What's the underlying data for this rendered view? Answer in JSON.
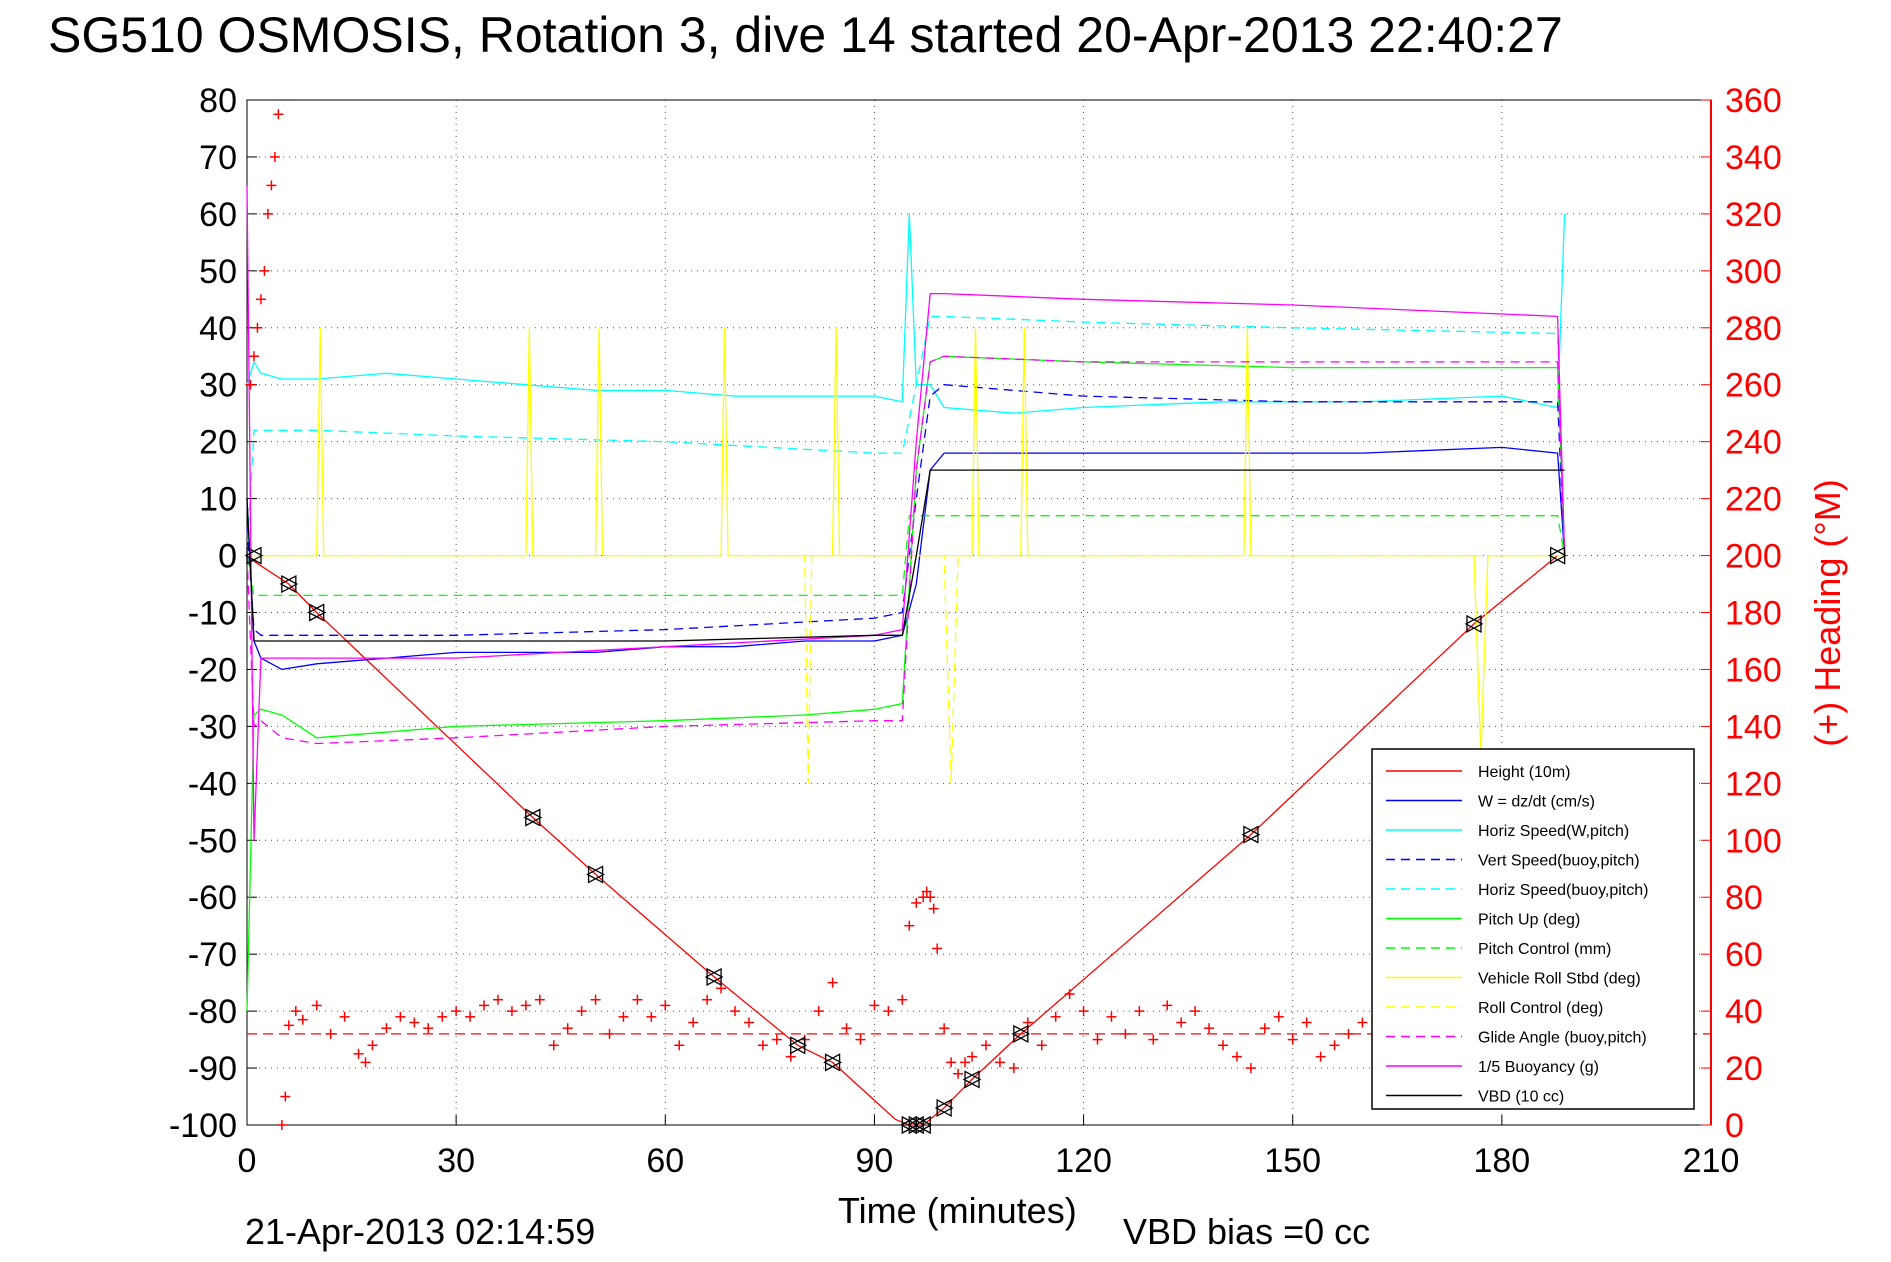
{
  "title": "SG510 OSMOSIS, Rotation 3, dive 14 started 20-Apr-2013 22:40:27",
  "footer": {
    "end_time": "21-Apr-2013 02:14:59",
    "vbd_bias": "VBD bias =0 cc"
  },
  "chart_data": {
    "type": "line",
    "xlabel": "Time (minutes)",
    "ylabel": "",
    "y2label": "(+) Heading (°M)",
    "xlim": [
      0,
      210
    ],
    "ylim": [
      -100,
      80
    ],
    "y2lim": [
      0,
      360
    ],
    "x_ticks": [
      0,
      30,
      60,
      90,
      120,
      150,
      180,
      210
    ],
    "y_ticks": [
      80,
      70,
      60,
      50,
      40,
      30,
      20,
      10,
      0,
      -10,
      -20,
      -30,
      -40,
      -50,
      -60,
      -70,
      -80,
      -90,
      -100
    ],
    "y2_ticks": [
      360,
      340,
      320,
      300,
      280,
      260,
      240,
      220,
      200,
      180,
      160,
      140,
      120,
      100,
      80,
      60,
      40,
      20,
      0
    ],
    "grid": true,
    "legend_position": "bottom-right",
    "series": [
      {
        "name": "Height (10m)",
        "color": "#ff0000",
        "style": "solid",
        "x": [
          0,
          1,
          6,
          10,
          41,
          50,
          67,
          79,
          84,
          93,
          95,
          97,
          100,
          104,
          111,
          144,
          176,
          188
        ],
        "y": [
          0,
          -1,
          -5,
          -10,
          -46,
          -56,
          -74,
          -86,
          -89,
          -99,
          -100,
          -100,
          -97,
          -92,
          -84,
          -49,
          -12,
          0
        ]
      },
      {
        "name": "W = dz/dt (cm/s)",
        "color": "#0000ff",
        "style": "solid",
        "x": [
          0,
          1,
          2,
          5,
          10,
          20,
          30,
          40,
          50,
          60,
          70,
          80,
          90,
          94,
          96,
          98,
          100,
          110,
          120,
          140,
          160,
          180,
          188,
          189
        ],
        "y": [
          10,
          -15,
          -18,
          -20,
          -19,
          -18,
          -17,
          -17,
          -17,
          -16,
          -16,
          -15,
          -15,
          -14,
          -5,
          15,
          18,
          18,
          18,
          18,
          18,
          19,
          18,
          0
        ]
      },
      {
        "name": "Horiz Speed(W,pitch)",
        "color": "#00ffff",
        "style": "solid",
        "x": [
          0,
          1,
          2,
          5,
          10,
          20,
          30,
          40,
          50,
          60,
          70,
          80,
          90,
          94,
          95,
          96,
          98,
          100,
          110,
          120,
          140,
          160,
          180,
          188,
          189
        ],
        "y": [
          30,
          34,
          32,
          31,
          31,
          32,
          31,
          30,
          29,
          29,
          28,
          28,
          28,
          27,
          60,
          30,
          30,
          26,
          25,
          26,
          27,
          27,
          28,
          26,
          60
        ]
      },
      {
        "name": "Vert Speed(buoy,pitch)",
        "color": "#0000ff",
        "style": "dashed",
        "x": [
          0,
          1,
          2,
          10,
          30,
          60,
          90,
          94,
          96,
          98,
          100,
          120,
          150,
          188,
          189
        ],
        "y": [
          5,
          -13,
          -14,
          -14,
          -14,
          -13,
          -11,
          -10,
          10,
          28,
          30,
          28,
          27,
          27,
          0
        ]
      },
      {
        "name": "Horiz Speed(buoy,pitch)",
        "color": "#00ffff",
        "style": "dashed",
        "x": [
          0,
          1,
          2,
          10,
          30,
          60,
          90,
          94,
          96,
          98,
          100,
          120,
          150,
          188,
          189
        ],
        "y": [
          0,
          22,
          22,
          22,
          21,
          20,
          18,
          18,
          30,
          42,
          42,
          41,
          40,
          39,
          0
        ]
      },
      {
        "name": "Pitch Up (deg)",
        "color": "#00ff00",
        "style": "solid",
        "x": [
          0,
          1,
          2,
          5,
          10,
          30,
          60,
          80,
          90,
          94,
          96,
          98,
          100,
          120,
          150,
          188,
          189
        ],
        "y": [
          -80,
          -28,
          -27,
          -28,
          -32,
          -30,
          -29,
          -28,
          -27,
          -26,
          15,
          34,
          35,
          34,
          33,
          33,
          0
        ]
      },
      {
        "name": "Pitch Control (mm)",
        "color": "#00ff00",
        "style": "dashed",
        "x": [
          0,
          1,
          2,
          10,
          30,
          60,
          90,
          94,
          95,
          100,
          120,
          150,
          188,
          189
        ],
        "y": [
          0,
          -7,
          -7,
          -7,
          -7,
          -7,
          -7,
          -7,
          7,
          7,
          7,
          7,
          7,
          0
        ]
      },
      {
        "name": "Vehicle Roll Stbd (deg)",
        "color": "#ffff00",
        "style": "solid",
        "x": [
          0,
          5,
          10,
          10.5,
          11,
          40,
          40.5,
          41,
          50,
          50.5,
          51,
          68,
          68.5,
          69,
          84,
          84.5,
          85,
          90,
          95,
          100,
          104,
          104.5,
          105,
          111,
          111.5,
          112,
          140,
          143,
          143.5,
          144,
          176,
          177,
          178,
          188,
          189
        ],
        "y": [
          0,
          0,
          0,
          40,
          0,
          0,
          40,
          0,
          0,
          40,
          0,
          0,
          40,
          0,
          0,
          40,
          0,
          0,
          0,
          0,
          0,
          40,
          0,
          0,
          40,
          0,
          0,
          0,
          40,
          0,
          0,
          -35,
          0,
          0,
          0
        ]
      },
      {
        "name": "Roll Control (deg)",
        "color": "#ffff00",
        "style": "dashed",
        "x": [
          0,
          5,
          80,
          80.5,
          81,
          96,
          100,
          101,
          102,
          188,
          189
        ],
        "y": [
          0,
          0,
          0,
          -40,
          0,
          0,
          0,
          -40,
          0,
          0,
          0
        ]
      },
      {
        "name": "Glide Angle (buoy,pitch)",
        "color": "#ff00ff",
        "style": "dashed",
        "x": [
          0,
          1,
          2,
          5,
          10,
          30,
          60,
          90,
          94,
          96,
          98,
          100,
          120,
          150,
          188,
          189
        ],
        "y": [
          0,
          -30,
          -29,
          -32,
          -33,
          -32,
          -30,
          -29,
          -29,
          15,
          34,
          35,
          34,
          34,
          34,
          0
        ]
      },
      {
        "name": "1/5 Buoyancy (g)",
        "color": "#ff00ff",
        "style": "solid",
        "x": [
          0,
          1,
          2,
          5,
          10,
          30,
          60,
          90,
          94,
          96,
          98,
          100,
          120,
          150,
          188,
          189
        ],
        "y": [
          65,
          -50,
          -18,
          -18,
          -18,
          -18,
          -16,
          -14,
          -13,
          20,
          46,
          46,
          45,
          44,
          42,
          0
        ]
      },
      {
        "name": "VBD (10 cc)",
        "color": "#000000",
        "style": "solid",
        "x": [
          0,
          1,
          2,
          10,
          30,
          60,
          90,
          94,
          96,
          98,
          100,
          120,
          150,
          188,
          189
        ],
        "y": [
          10,
          -15,
          -15,
          -15,
          -15,
          -15,
          -14,
          -14,
          0,
          15,
          15,
          15,
          15,
          15,
          15
        ]
      }
    ],
    "markers_triangles": {
      "color": "#000000",
      "x": [
        1,
        6,
        10,
        41,
        50,
        67,
        79,
        84,
        95,
        96,
        97,
        100,
        104,
        111,
        144,
        176,
        188
      ],
      "y": [
        0,
        -5,
        -10,
        -46,
        -56,
        -74,
        -86,
        -89,
        -100,
        -100,
        -100,
        -97,
        -92,
        -84,
        -49,
        -12,
        0
      ]
    },
    "heading": {
      "name": "Heading",
      "color": "#ff0000",
      "marker": "+",
      "axis": "right",
      "mean": 32,
      "x": [
        0.5,
        1,
        1.5,
        2,
        2.5,
        3,
        3.5,
        4,
        4.5,
        5,
        5.5,
        6,
        7,
        8,
        10,
        12,
        14,
        16,
        17,
        18,
        20,
        22,
        24,
        26,
        28,
        30,
        32,
        34,
        36,
        38,
        40,
        42,
        44,
        46,
        48,
        50,
        52,
        54,
        56,
        58,
        60,
        62,
        64,
        66,
        68,
        70,
        72,
        74,
        76,
        78,
        80,
        82,
        84,
        86,
        88,
        90,
        92,
        94,
        95,
        96,
        97,
        97.5,
        98,
        98.5,
        99,
        100,
        101,
        102,
        103,
        104,
        106,
        108,
        110,
        112,
        114,
        116,
        118,
        120,
        122,
        124,
        126,
        128,
        130,
        132,
        134,
        136,
        138,
        140,
        142,
        144,
        146,
        148,
        150,
        152,
        154,
        156,
        158,
        160,
        162,
        164
      ],
      "y": [
        260,
        270,
        280,
        290,
        300,
        320,
        330,
        340,
        355,
        0,
        10,
        35,
        40,
        37,
        42,
        32,
        38,
        25,
        22,
        28,
        34,
        38,
        36,
        34,
        38,
        40,
        38,
        42,
        44,
        40,
        42,
        44,
        28,
        34,
        40,
        44,
        32,
        38,
        44,
        38,
        42,
        28,
        36,
        44,
        48,
        40,
        36,
        28,
        30,
        24,
        30,
        40,
        50,
        34,
        30,
        42,
        40,
        44,
        70,
        78,
        80,
        82,
        80,
        76,
        62,
        34,
        22,
        18,
        22,
        24,
        28,
        22,
        20,
        36,
        28,
        38,
        46,
        40,
        30,
        38,
        32,
        40,
        30,
        42,
        36,
        40,
        34,
        28,
        24,
        20,
        34,
        38,
        30,
        36,
        24,
        28,
        32,
        36,
        30,
        32
      ]
    }
  }
}
